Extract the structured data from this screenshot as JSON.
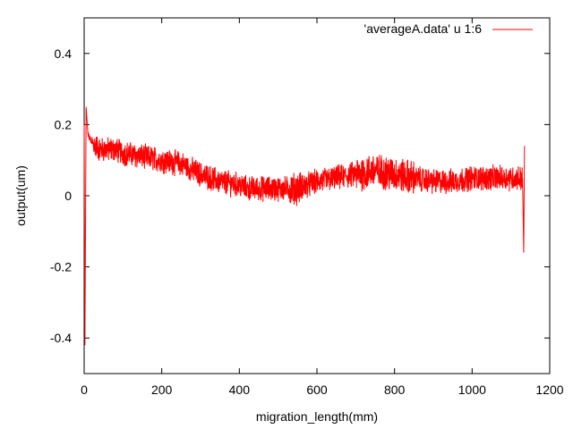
{
  "chart_data": {
    "type": "line",
    "xlabel": "migration_length(mm)",
    "ylabel": "output(um)",
    "xlim": [
      0,
      1200
    ],
    "ylim": [
      -0.5,
      0.5
    ],
    "xticks": [
      0,
      200,
      400,
      600,
      800,
      1000,
      1200
    ],
    "yticks": [
      -0.4,
      -0.2,
      0,
      0.2,
      0.4
    ],
    "xtick_labels": [
      "0",
      "200",
      "400",
      "600",
      "800",
      "1000",
      "1200"
    ],
    "ytick_labels": [
      "-0.4",
      "-0.2",
      "0",
      "0.2",
      "0.4"
    ],
    "grid": false,
    "legend_position": "top-right",
    "series": [
      {
        "name": "'averageA.data' u 1:6",
        "color": "#ff0000",
        "x": [
          0,
          2,
          5,
          10,
          20,
          40,
          60,
          80,
          100,
          150,
          200,
          250,
          300,
          350,
          400,
          420,
          450,
          500,
          550,
          600,
          650,
          700,
          750,
          800,
          850,
          900,
          950,
          1000,
          1050,
          1100,
          1130,
          1133,
          1135
        ],
        "y": [
          0.2,
          -0.42,
          0.25,
          0.17,
          0.15,
          0.13,
          0.13,
          0.13,
          0.12,
          0.11,
          0.1,
          0.09,
          0.06,
          0.04,
          0.03,
          0.02,
          0.02,
          0.02,
          0.02,
          0.04,
          0.05,
          0.06,
          0.07,
          0.06,
          0.05,
          0.04,
          0.04,
          0.05,
          0.05,
          0.05,
          0.05,
          -0.16,
          0.14
        ]
      }
    ]
  }
}
